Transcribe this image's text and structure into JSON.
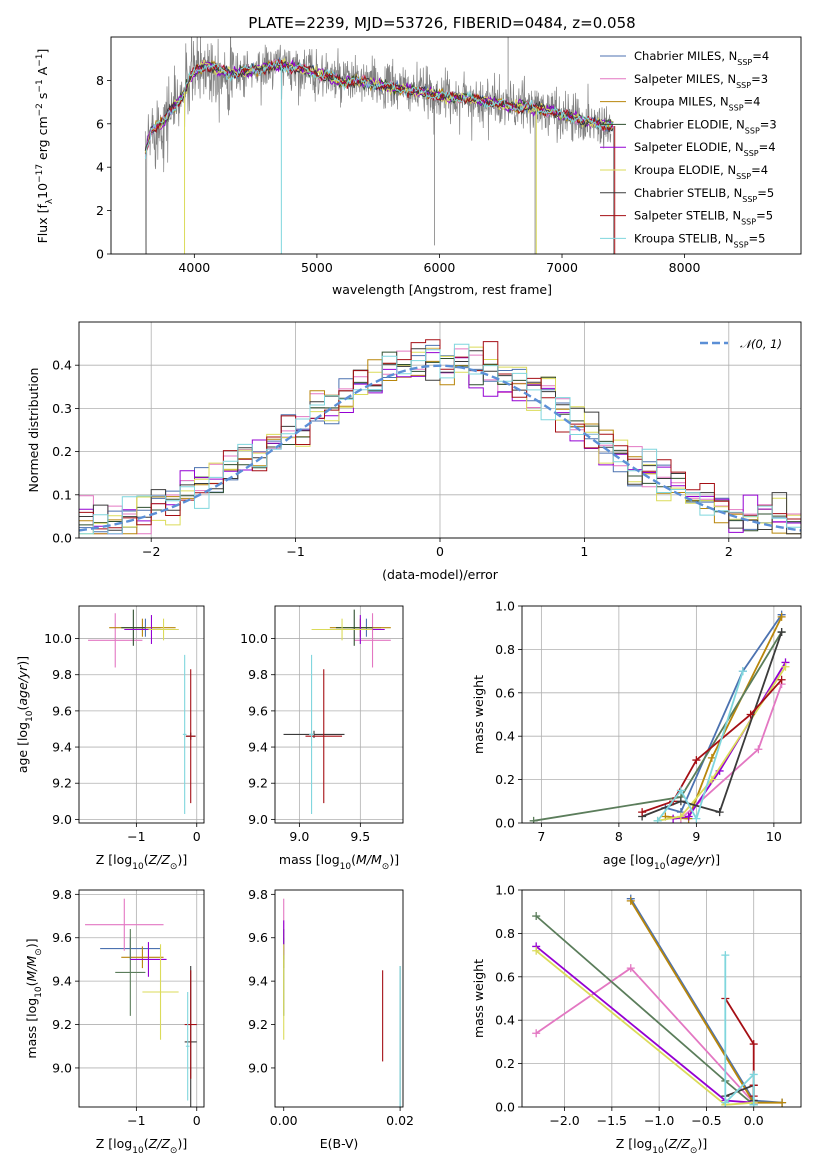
{
  "chart_data": [
    {
      "id": "spectrum",
      "type": "line",
      "title": "PLATE=2239, MJD=53726, FIBERID=0484, z=0.058",
      "xlabel": "wavelength [Angstrom, rest frame]",
      "ylabel": "Flux [f_λ 10^-17 erg cm^-2 s^-1 A^-1]",
      "xlim": [
        3320,
        8950
      ],
      "ylim": [
        0,
        10
      ],
      "xticks": [
        4000,
        5000,
        6000,
        7000,
        8000
      ],
      "yticks": [
        0,
        2,
        4,
        6,
        8
      ],
      "grid": false,
      "legend_position": "top-right",
      "data_series": "observed",
      "series": [
        {
          "name": "Chabrier MILES, N_SSP=4",
          "color": "#4c72b0"
        },
        {
          "name": "Salpeter MILES, N_SSP=3",
          "color": "#e377c2"
        },
        {
          "name": "Kroupa MILES, N_SSP=4",
          "color": "#b8860b"
        },
        {
          "name": "Chabrier ELODIE, N_SSP=3",
          "color": "#2f4f2f"
        },
        {
          "name": "Salpeter ELODIE, N_SSP=4",
          "color": "#9400d3"
        },
        {
          "name": "Kroupa ELODIE, N_SSP=4",
          "color": "#dbdb5a"
        },
        {
          "name": "Chabrier STELIB, N_SSP=5",
          "color": "#3b3b3b"
        },
        {
          "name": "Salpeter STELIB, N_SSP=5",
          "color": "#a50f15"
        },
        {
          "name": "Kroupa STELIB, N_SSP=5",
          "color": "#7fd6dd"
        }
      ],
      "continuum": {
        "x": [
          3600,
          3650,
          3700,
          3750,
          3800,
          3850,
          3900,
          3950,
          4000,
          4050,
          4100,
          4150,
          4200,
          4300,
          4400,
          4500,
          4600,
          4700,
          4800,
          4900,
          5000,
          5100,
          5200,
          5300,
          5400,
          5500,
          5600,
          5700,
          5800,
          5900,
          6000,
          6100,
          6200,
          6300,
          6400,
          6500,
          6600,
          6700,
          6800,
          6900,
          7000,
          7100,
          7200,
          7300,
          7400
        ],
        "y": [
          4.7,
          5.7,
          5.9,
          6.1,
          6.6,
          6.9,
          7.2,
          7.9,
          8.4,
          8.6,
          8.7,
          8.6,
          8.5,
          8.3,
          8.4,
          8.5,
          8.6,
          8.7,
          8.6,
          8.5,
          8.3,
          8.2,
          7.9,
          8.0,
          7.9,
          7.8,
          7.7,
          7.6,
          7.5,
          7.4,
          7.3,
          7.2,
          7.2,
          7.1,
          7.0,
          6.9,
          6.8,
          6.8,
          6.7,
          6.6,
          6.4,
          6.3,
          6.1,
          6.0,
          5.9
        ]
      }
    },
    {
      "id": "residuals",
      "type": "histogram",
      "xlabel": "(data-model)/error",
      "ylabel": "Normed distribution",
      "xlim": [
        -2.5,
        2.5
      ],
      "ylim": [
        0,
        0.5
      ],
      "xticks": [
        -2,
        -1,
        0,
        1,
        2
      ],
      "yticks": [
        0.0,
        0.1,
        0.2,
        0.3,
        0.4
      ],
      "grid": true,
      "legend_position": "top-right",
      "legend": [
        "𝒩(0, 1)"
      ],
      "reference_curve": "normal",
      "bins": [
        -2.5,
        2.5,
        50
      ]
    },
    {
      "id": "age_vs_Z",
      "type": "errorbar",
      "xlabel": "Z [log10(Z/Z⊙)]",
      "ylabel": "age  [log10(age/yr)]",
      "xlim": [
        -1.95,
        0.12
      ],
      "ylim": [
        8.98,
        10.18
      ],
      "xticks": [
        -1,
        0
      ],
      "yticks": [
        9.0,
        9.2,
        9.4,
        9.6,
        9.8,
        10.0
      ],
      "grid": true,
      "points": [
        {
          "x": -0.85,
          "y": 10.06,
          "xerr": 0.25,
          "yerr": 0.05,
          "color": "#4c72b0"
        },
        {
          "x": -1.35,
          "y": 9.99,
          "xerr": 0.45,
          "yerr": 0.15,
          "color": "#e377c2"
        },
        {
          "x": -0.9,
          "y": 10.06,
          "xerr": 0.55,
          "yerr": 0.05,
          "color": "#b8860b"
        },
        {
          "x": -1.05,
          "y": 10.06,
          "xerr": 0.2,
          "yerr": 0.1,
          "color": "#2f4f2f"
        },
        {
          "x": -0.75,
          "y": 10.05,
          "xerr": 0.45,
          "yerr": 0.08,
          "color": "#9400d3"
        },
        {
          "x": -0.55,
          "y": 10.05,
          "xerr": 0.25,
          "yerr": 0.06,
          "color": "#dbdb5a"
        },
        {
          "x": -0.1,
          "y": 9.46,
          "xerr": 0.08,
          "yerr": 0.02,
          "color": "#3b3b3b"
        },
        {
          "x": -0.1,
          "y": 9.46,
          "xerr": 0.08,
          "yerr": 0.37,
          "color": "#a50f15"
        },
        {
          "x": -0.2,
          "y": 9.47,
          "xerr": 0.03,
          "yerr": 0.44,
          "color": "#7fd6dd"
        }
      ]
    },
    {
      "id": "age_vs_mass",
      "type": "errorbar",
      "xlabel": "mass [log10(M/M⊙)]",
      "ylabel": "",
      "xlim": [
        8.8,
        9.85
      ],
      "ylim": [
        8.98,
        10.18
      ],
      "xticks": [
        9.0,
        9.5
      ],
      "yticks": [
        9.0,
        9.2,
        9.4,
        9.6,
        9.8,
        10.0
      ],
      "grid": true,
      "points": [
        {
          "x": 9.55,
          "y": 10.06,
          "xerr": 0.12,
          "yerr": 0.05,
          "color": "#4c72b0"
        },
        {
          "x": 9.6,
          "y": 9.99,
          "xerr": 0.15,
          "yerr": 0.15,
          "color": "#e377c2"
        },
        {
          "x": 9.5,
          "y": 10.06,
          "xerr": 0.25,
          "yerr": 0.05,
          "color": "#b8860b"
        },
        {
          "x": 9.45,
          "y": 10.06,
          "xerr": 0.15,
          "yerr": 0.1,
          "color": "#2f4f2f"
        },
        {
          "x": 9.5,
          "y": 10.05,
          "xerr": 0.2,
          "yerr": 0.08,
          "color": "#9400d3"
        },
        {
          "x": 9.35,
          "y": 10.05,
          "xerr": 0.25,
          "yerr": 0.06,
          "color": "#dbdb5a"
        },
        {
          "x": 9.12,
          "y": 9.47,
          "xerr": 0.25,
          "yerr": 0.02,
          "color": "#3b3b3b"
        },
        {
          "x": 9.2,
          "y": 9.46,
          "xerr": 0.15,
          "yerr": 0.37,
          "color": "#a50f15"
        },
        {
          "x": 9.1,
          "y": 9.47,
          "xerr": 0.02,
          "yerr": 0.44,
          "color": "#7fd6dd"
        }
      ]
    },
    {
      "id": "weight_vs_age",
      "type": "line",
      "xlabel": "age  [log10(age/yr)]",
      "ylabel": "mass weight",
      "xlim": [
        6.75,
        10.35
      ],
      "ylim": [
        0,
        1.0
      ],
      "xticks": [
        7,
        8,
        9,
        10
      ],
      "yticks": [
        0.0,
        0.2,
        0.4,
        0.6,
        0.8,
        1.0
      ],
      "grid": true,
      "series": [
        {
          "color": "#4c72b0",
          "x": [
            8.6,
            8.8,
            9.6,
            10.1
          ],
          "y": [
            0.07,
            0.05,
            0.7,
            0.96
          ]
        },
        {
          "color": "#e377c2",
          "x": [
            8.8,
            9.8,
            10.1
          ],
          "y": [
            0.02,
            0.34,
            0.64
          ]
        },
        {
          "color": "#b8860b",
          "x": [
            8.6,
            8.9,
            9.2,
            10.1
          ],
          "y": [
            0.03,
            0.02,
            0.3,
            0.95
          ]
        },
        {
          "color": "#5b7d5b",
          "x": [
            6.9,
            8.8,
            10.1
          ],
          "y": [
            0.01,
            0.12,
            0.88
          ]
        },
        {
          "color": "#9400d3",
          "x": [
            8.7,
            8.9,
            9.3,
            10.15
          ],
          "y": [
            0.02,
            0.03,
            0.24,
            0.74
          ]
        },
        {
          "color": "#dbdb5a",
          "x": [
            8.5,
            8.8,
            9.2,
            10.15
          ],
          "y": [
            0.01,
            0.03,
            0.2,
            0.72
          ]
        },
        {
          "color": "#3b3b3b",
          "x": [
            8.3,
            8.8,
            9.3,
            10.1
          ],
          "y": [
            0.03,
            0.1,
            0.05,
            0.88
          ]
        },
        {
          "color": "#a50f15",
          "x": [
            8.3,
            8.7,
            9.0,
            9.7,
            10.1
          ],
          "y": [
            0.05,
            0.1,
            0.29,
            0.5,
            0.66
          ]
        },
        {
          "color": "#7fd6dd",
          "x": [
            8.5,
            8.8,
            9.0,
            9.6
          ],
          "y": [
            0.01,
            0.15,
            0.02,
            0.7
          ]
        }
      ]
    },
    {
      "id": "mass_vs_Z",
      "type": "errorbar",
      "xlabel": "Z [log10(Z/Z⊙)]",
      "ylabel": "mass [log10(M/M⊙)]",
      "xlim": [
        -1.95,
        0.12
      ],
      "ylim": [
        8.82,
        9.82
      ],
      "xticks": [
        -1,
        0
      ],
      "yticks": [
        9.0,
        9.2,
        9.4,
        9.6,
        9.8
      ],
      "grid": true,
      "points": [
        {
          "x": -1.1,
          "y": 9.55,
          "xerr": 0.5,
          "yerr": 0.05,
          "color": "#4c72b0"
        },
        {
          "x": -1.2,
          "y": 9.66,
          "xerr": 0.65,
          "yerr": 0.12,
          "color": "#e377c2"
        },
        {
          "x": -0.9,
          "y": 9.51,
          "xerr": 0.35,
          "yerr": 0.05,
          "color": "#b8860b"
        },
        {
          "x": -1.1,
          "y": 9.44,
          "xerr": 0.25,
          "yerr": 0.2,
          "color": "#5b7d5b"
        },
        {
          "x": -0.8,
          "y": 9.5,
          "xerr": 0.3,
          "yerr": 0.08,
          "color": "#9400d3"
        },
        {
          "x": -0.6,
          "y": 9.35,
          "xerr": 0.3,
          "yerr": 0.22,
          "color": "#dbdb5a"
        },
        {
          "x": -0.1,
          "y": 9.12,
          "xerr": 0.1,
          "yerr": 0.35,
          "color": "#3b3b3b"
        },
        {
          "x": -0.1,
          "y": 9.2,
          "xerr": 0.1,
          "yerr": 0.25,
          "color": "#a50f15"
        },
        {
          "x": -0.15,
          "y": 9.1,
          "xerr": 0.03,
          "yerr": 0.25,
          "color": "#7fd6dd"
        }
      ]
    },
    {
      "id": "mass_vs_EBV",
      "type": "errorbar",
      "xlabel": "E(B-V)",
      "ylabel": "",
      "xlim": [
        -0.0015,
        0.0205
      ],
      "ylim": [
        8.82,
        9.82
      ],
      "xticks": [
        0.0,
        0.02
      ],
      "xtick_labels": [
        "0.00",
        "0.02"
      ],
      "yticks": [
        9.0,
        9.2,
        9.4,
        9.6,
        9.8
      ],
      "grid": false,
      "points": [
        {
          "x": 0.0,
          "y": 9.55,
          "xerr": 0.0,
          "yerr": 0.05,
          "color": "#4c72b0"
        },
        {
          "x": 0.0,
          "y": 9.66,
          "xerr": 0.0,
          "yerr": 0.12,
          "color": "#e377c2"
        },
        {
          "x": 0.0,
          "y": 9.51,
          "xerr": 0.0,
          "yerr": 0.05,
          "color": "#b8860b"
        },
        {
          "x": 0.0,
          "y": 9.44,
          "xerr": 0.0,
          "yerr": 0.2,
          "color": "#5b7d5b"
        },
        {
          "x": 0.0,
          "y": 9.6,
          "xerr": 0.0,
          "yerr": 0.08,
          "color": "#9400d3"
        },
        {
          "x": 0.0,
          "y": 9.35,
          "xerr": 0.0,
          "yerr": 0.22,
          "color": "#dbdb5a"
        },
        {
          "x": 0.02,
          "y": 9.12,
          "xerr": 0.0,
          "yerr": 0.35,
          "color": "#3b3b3b"
        },
        {
          "x": 0.017,
          "y": 9.24,
          "xerr": 0.0,
          "yerr": 0.21,
          "color": "#a50f15"
        },
        {
          "x": 0.02,
          "y": 9.1,
          "xerr": 0.0,
          "yerr": 0.37,
          "color": "#7fd6dd"
        }
      ]
    },
    {
      "id": "weight_vs_Z",
      "type": "line",
      "xlabel": "Z [log10(Z/Z⊙)]",
      "ylabel": "mass weight",
      "xlim": [
        -2.45,
        0.5
      ],
      "ylim": [
        0,
        1.0
      ],
      "xticks": [
        -2.0,
        -1.5,
        -1.0,
        -0.5,
        0.0
      ],
      "yticks": [
        0.0,
        0.2,
        0.4,
        0.6,
        0.8,
        1.0
      ],
      "grid": true,
      "series": [
        {
          "color": "#4c72b0",
          "x": [
            -1.3,
            0.0,
            0.3
          ],
          "y": [
            0.96,
            0.03,
            0.02
          ]
        },
        {
          "color": "#e377c2",
          "x": [
            -2.3,
            -1.3,
            0.0
          ],
          "y": [
            0.34,
            0.64,
            0.02
          ]
        },
        {
          "color": "#b8860b",
          "x": [
            -1.3,
            0.0,
            0.3
          ],
          "y": [
            0.95,
            0.02,
            0.02
          ]
        },
        {
          "color": "#5b7d5b",
          "x": [
            -2.3,
            -0.3,
            0.0
          ],
          "y": [
            0.88,
            0.12,
            0.01
          ]
        },
        {
          "color": "#9400d3",
          "x": [
            -2.3,
            -0.3,
            0.0
          ],
          "y": [
            0.74,
            0.03,
            0.02
          ]
        },
        {
          "color": "#dbdb5a",
          "x": [
            -2.3,
            -0.3,
            0.0
          ],
          "y": [
            0.72,
            0.01,
            0.02
          ]
        },
        {
          "color": "#3b3b3b",
          "x": [
            -0.3,
            0.0,
            0.0
          ],
          "y": [
            0.05,
            0.1,
            0.03
          ]
        },
        {
          "color": "#a50f15",
          "x": [
            -0.3,
            0.0,
            0.0,
            0.0
          ],
          "y": [
            0.5,
            0.29,
            0.1,
            0.05
          ]
        },
        {
          "color": "#7fd6dd",
          "x": [
            -0.3,
            -0.3,
            0.0,
            0.0
          ],
          "y": [
            0.7,
            0.02,
            0.15,
            0.01
          ]
        }
      ]
    }
  ]
}
